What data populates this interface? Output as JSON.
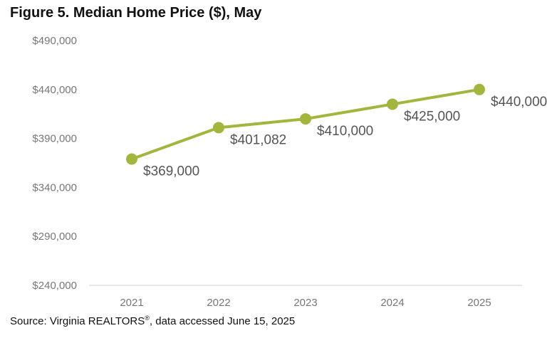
{
  "title": "Figure 5. Median Home Price ($), May",
  "source": {
    "prefix": "Source: Virginia REALTORS",
    "reg_mark": "®",
    "suffix": ", data accessed June 15, 2025"
  },
  "colors": {
    "series": "#a3b53c",
    "axis_text": "#777777",
    "data_label": "#555555",
    "baseline": "#cccccc"
  },
  "chart_data": {
    "type": "line",
    "title": "Figure 5. Median Home Price ($), May",
    "x": [
      "2021",
      "2022",
      "2023",
      "2024",
      "2025"
    ],
    "series": [
      {
        "values": [
          369000,
          401082,
          410000,
          425000,
          440000
        ],
        "labels": [
          "$369,000",
          "$401,082",
          "$410,000",
          "$425,000",
          "$440,000"
        ]
      }
    ],
    "yticks": [
      240000,
      290000,
      340000,
      390000,
      440000,
      490000
    ],
    "ytick_labels": [
      "$240,000",
      "$290,000",
      "$340,000",
      "$390,000",
      "$440,000",
      "$490,000"
    ],
    "ylim": [
      240000,
      490000
    ],
    "xlabel": "",
    "ylabel": "",
    "grid": false,
    "legend": "none"
  }
}
